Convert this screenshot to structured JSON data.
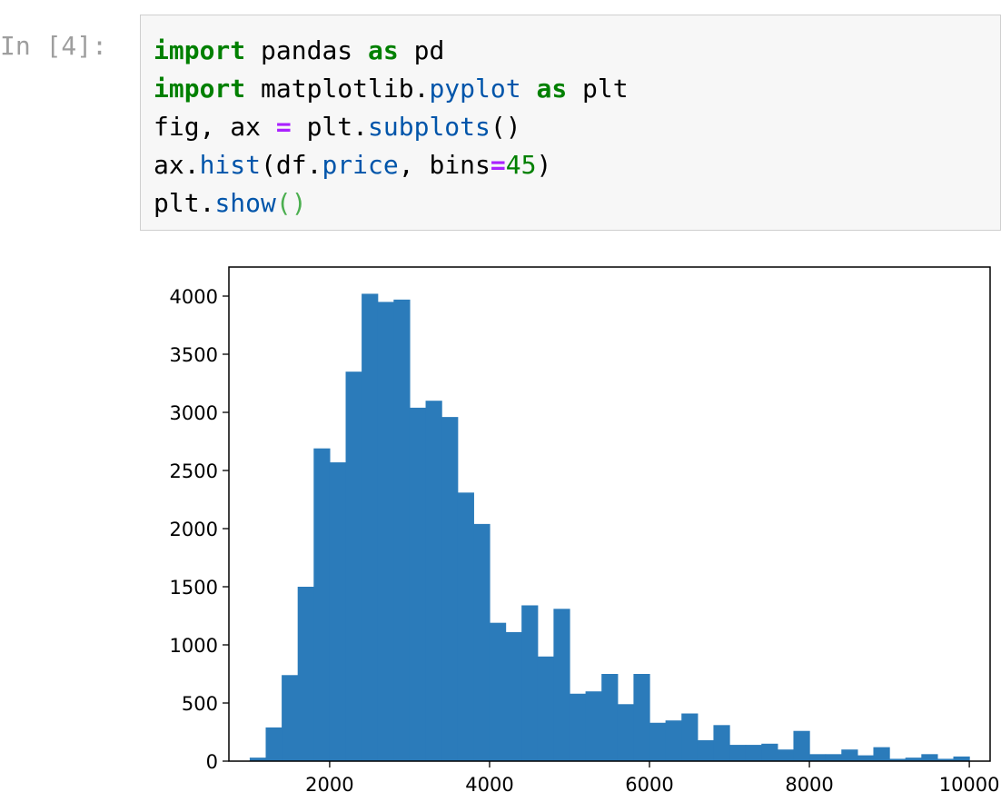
{
  "cell": {
    "prompt": "In [4]:",
    "code_lines": [
      [
        {
          "t": "import",
          "c": "kw"
        },
        {
          "t": " pandas ",
          "c": ""
        },
        {
          "t": "as",
          "c": "kw"
        },
        {
          "t": " pd",
          "c": ""
        }
      ],
      [
        {
          "t": "import",
          "c": "kw"
        },
        {
          "t": " matplotlib.",
          "c": ""
        },
        {
          "t": "pyplot",
          "c": "fn"
        },
        {
          "t": " ",
          "c": ""
        },
        {
          "t": "as",
          "c": "kw"
        },
        {
          "t": " plt",
          "c": ""
        }
      ],
      [
        {
          "t": "fig, ax ",
          "c": ""
        },
        {
          "t": "=",
          "c": "op"
        },
        {
          "t": " plt.",
          "c": ""
        },
        {
          "t": "subplots",
          "c": "fn"
        },
        {
          "t": "()",
          "c": ""
        }
      ],
      [
        {
          "t": "ax.",
          "c": ""
        },
        {
          "t": "hist",
          "c": "fn"
        },
        {
          "t": "(df.",
          "c": ""
        },
        {
          "t": "price",
          "c": "fn"
        },
        {
          "t": ", bins",
          "c": ""
        },
        {
          "t": "=",
          "c": "op"
        },
        {
          "t": "45",
          "c": "num"
        },
        {
          "t": ")",
          "c": ""
        }
      ],
      [
        {
          "t": "plt.",
          "c": ""
        },
        {
          "t": "show",
          "c": "fn"
        },
        {
          "t": "()",
          "c": "par"
        }
      ]
    ]
  },
  "chart_data": {
    "type": "bar",
    "bar_color": "#2b7bba",
    "bin_start": 1000,
    "bin_width": 200,
    "values": [
      30,
      290,
      740,
      1500,
      2690,
      2570,
      3350,
      4020,
      3950,
      3970,
      3040,
      3100,
      2960,
      2310,
      2040,
      1190,
      1110,
      1340,
      900,
      1310,
      580,
      600,
      750,
      490,
      750,
      330,
      350,
      410,
      180,
      310,
      140,
      140,
      150,
      100,
      260,
      60,
      60,
      100,
      50,
      120,
      20,
      30,
      60,
      20,
      40
    ],
    "xlim": [
      740,
      10260
    ],
    "ylim": [
      0,
      4250
    ],
    "x_ticks": [
      2000,
      4000,
      6000,
      8000,
      10000
    ],
    "y_ticks": [
      0,
      500,
      1000,
      1500,
      2000,
      2500,
      3000,
      3500,
      4000
    ],
    "grid": false
  }
}
